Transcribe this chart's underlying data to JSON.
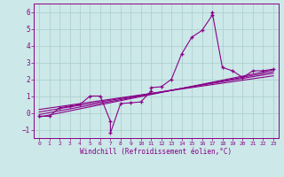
{
  "background_color": "#cce8e8",
  "grid_color": "#aacccc",
  "line_color": "#880088",
  "xlim": [
    -0.5,
    23.5
  ],
  "ylim": [
    -1.5,
    6.5
  ],
  "yticks": [
    -1,
    0,
    1,
    2,
    3,
    4,
    5,
    6
  ],
  "xtick_labels": [
    "0",
    "1",
    "2",
    "3",
    "4",
    "5",
    "6",
    "7",
    "8",
    "9",
    "10",
    "11",
    "12",
    "13",
    "14",
    "15",
    "16",
    "17",
    "18",
    "19",
    "20",
    "21",
    "22",
    "23"
  ],
  "xlabel": "Windchill (Refroidissement éolien,°C)",
  "series_x": [
    0,
    1,
    2,
    3,
    4,
    5,
    6,
    7,
    7,
    8,
    9,
    10,
    11,
    11,
    12,
    13,
    14,
    15,
    16,
    17,
    17,
    18,
    19,
    20,
    21,
    22,
    23
  ],
  "series_y": [
    -0.2,
    -0.2,
    0.3,
    0.4,
    0.5,
    1.0,
    1.0,
    -0.5,
    -1.2,
    0.55,
    0.6,
    0.65,
    1.3,
    1.5,
    1.55,
    2.0,
    3.5,
    4.5,
    4.9,
    5.8,
    6.0,
    2.7,
    2.5,
    2.1,
    2.5,
    2.5,
    2.6
  ],
  "regression_lines": [
    {
      "x_start": 0,
      "y_start": -0.25,
      "x_end": 23,
      "y_end": 2.55
    },
    {
      "x_start": 0,
      "y_start": -0.1,
      "x_end": 23,
      "y_end": 2.45
    },
    {
      "x_start": 0,
      "y_start": 0.05,
      "x_end": 23,
      "y_end": 2.35
    },
    {
      "x_start": 0,
      "y_start": 0.2,
      "x_end": 23,
      "y_end": 2.2
    }
  ]
}
